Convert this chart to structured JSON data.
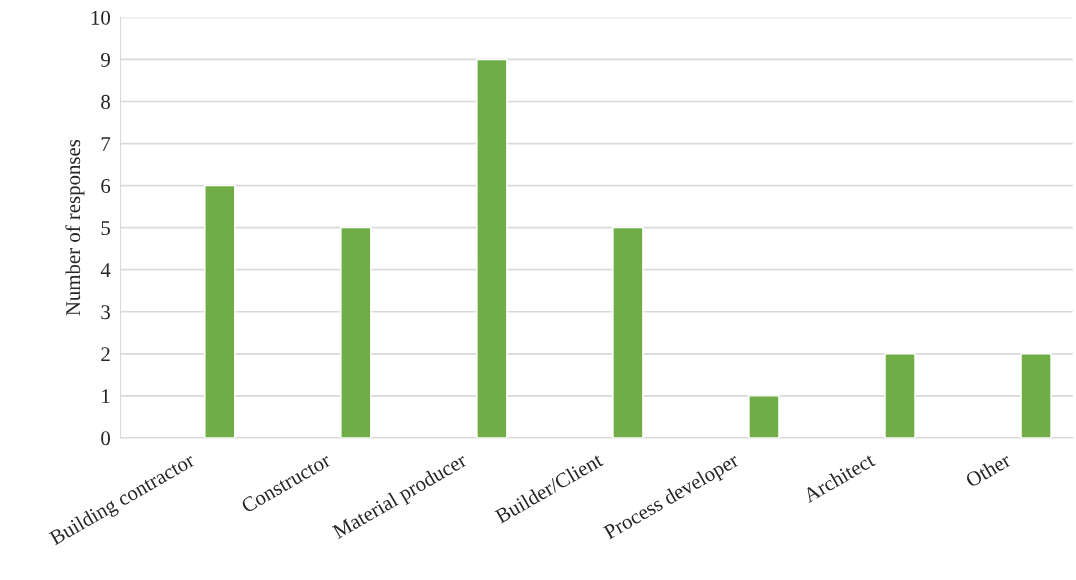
{
  "chart_data": {
    "type": "bar",
    "ylabel": "Number of responses",
    "categories": [
      "Building contractor",
      "Constructor",
      "Material producer",
      "Builder/Client",
      "Process developer",
      "Architect",
      "Other"
    ],
    "values": [
      6,
      5,
      9,
      5,
      1,
      2,
      2
    ],
    "color": "#70ad47",
    "ylim": [
      0,
      10
    ],
    "yticks": [
      0,
      1,
      2,
      3,
      4,
      5,
      6,
      7,
      8,
      9,
      10
    ],
    "grid": "y"
  }
}
